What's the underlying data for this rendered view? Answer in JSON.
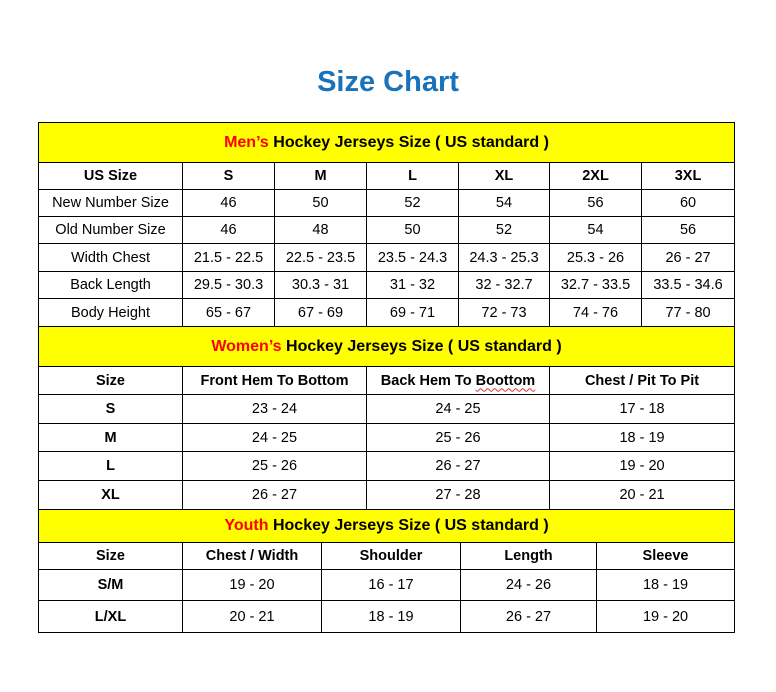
{
  "title": "Size Chart",
  "colors": {
    "title": "#1a72bb",
    "caption_bg": "#ffff00",
    "caption_highlight": "#ff0000"
  },
  "sections": [
    {
      "caption_highlight": "Men’s",
      "caption_rest": " Hockey Jerseys Size ( US standard )",
      "headers": [
        "US Size",
        "S",
        "M",
        "L",
        "XL",
        "2XL",
        "3XL"
      ],
      "rows": [
        [
          "New Number Size",
          "46",
          "50",
          "52",
          "54",
          "56",
          "60"
        ],
        [
          "Old Number Size",
          "46",
          "48",
          "50",
          "52",
          "54",
          "56"
        ],
        [
          "Width Chest",
          "21.5 - 22.5",
          "22.5 - 23.5",
          "23.5 - 24.3",
          "24.3 - 25.3",
          "25.3 - 26",
          "26 - 27"
        ],
        [
          "Back Length",
          "29.5 - 30.3",
          "30.3 - 31",
          "31 - 32",
          "32 - 32.7",
          "32.7 - 33.5",
          "33.5 - 34.6"
        ],
        [
          "Body Height",
          "65 - 67",
          "67 - 69",
          "69 - 71",
          "72 - 73",
          "74 - 76",
          "77 - 80"
        ]
      ]
    },
    {
      "caption_highlight": "Women’s",
      "caption_rest": " Hockey Jerseys Size ( US standard )",
      "headers": [
        "Size",
        "Front Hem To Bottom",
        "Back Hem To Boottom",
        "Chest / Pit To Pit"
      ],
      "rows": [
        [
          "S",
          "23 - 24",
          "24 - 25",
          "17 - 18"
        ],
        [
          "M",
          "24 - 25",
          "25 - 26",
          "18 - 19"
        ],
        [
          "L",
          "25 - 26",
          "26 - 27",
          "19 - 20"
        ],
        [
          "XL",
          "26 - 27",
          "27 - 28",
          "20 - 21"
        ]
      ]
    },
    {
      "caption_highlight": "Youth",
      "caption_rest": " Hockey Jerseys Size ( US standard )",
      "headers": [
        "Size",
        "Chest / Width",
        "Shoulder",
        "Length",
        "Sleeve"
      ],
      "rows": [
        [
          "S/M",
          "19 - 20",
          "16 - 17",
          "24 - 26",
          "18 - 19"
        ],
        [
          "L/XL",
          "20 - 21",
          "18 - 19",
          "26 - 27",
          "19 - 20"
        ]
      ]
    }
  ]
}
